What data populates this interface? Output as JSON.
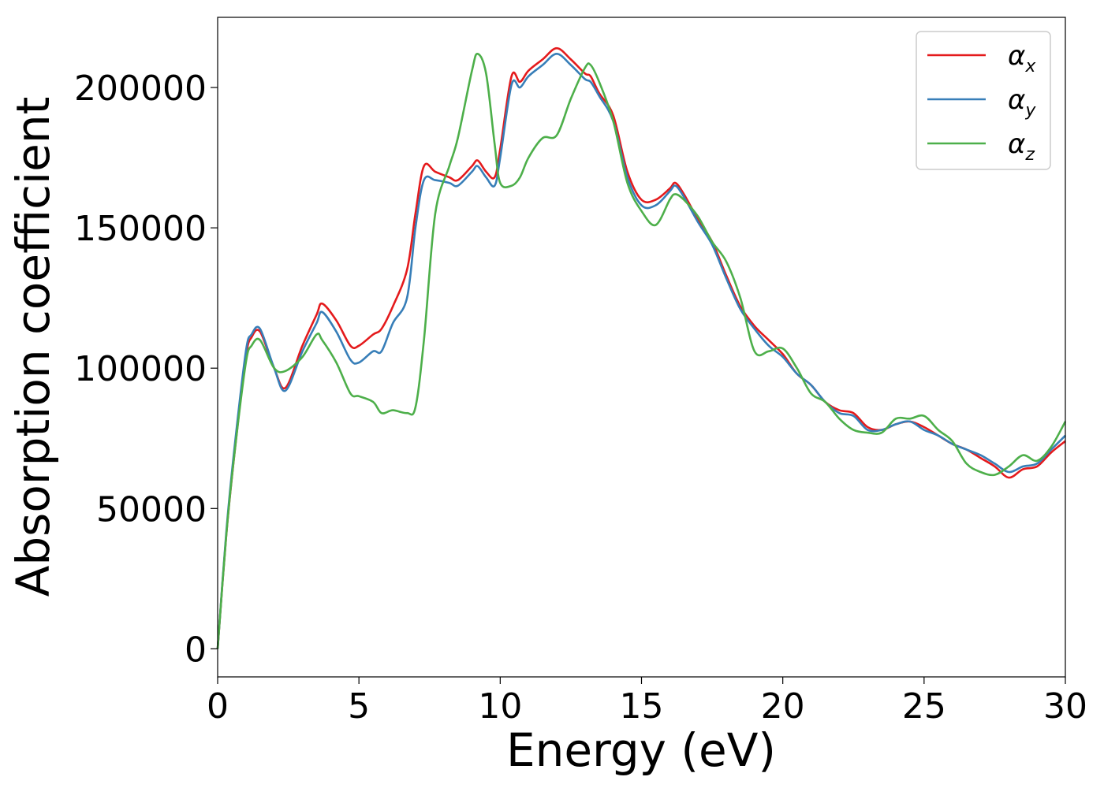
{
  "chart_data": {
    "type": "line",
    "xlabel": "Energy (eV)",
    "ylabel": "Absorption coefficient",
    "xlim": [
      0,
      30
    ],
    "ylim": [
      -10000,
      225000
    ],
    "xticks": [
      "0",
      "5",
      "10",
      "15",
      "20",
      "25",
      "30"
    ],
    "yticks": [
      "0",
      "50000",
      "100000",
      "150000",
      "200000"
    ],
    "grid": false,
    "legend_position": "top-right",
    "x": [
      0,
      0.3,
      0.6,
      1.0,
      1.2,
      1.5,
      2.0,
      2.4,
      3.0,
      3.5,
      3.7,
      4.2,
      4.7,
      5.0,
      5.5,
      5.8,
      6.2,
      6.7,
      7.0,
      7.3,
      7.7,
      8.2,
      8.5,
      9.0,
      9.2,
      9.5,
      9.8,
      10.0,
      10.4,
      10.7,
      11.0,
      11.5,
      12.0,
      12.5,
      13.0,
      13.2,
      13.5,
      14.0,
      14.5,
      15.0,
      15.5,
      16.0,
      16.2,
      16.5,
      17.0,
      17.5,
      18.0,
      18.5,
      19.0,
      19.5,
      20.0,
      20.5,
      21.0,
      21.5,
      22.0,
      22.5,
      23.0,
      23.5,
      24.0,
      24.5,
      25.0,
      25.5,
      26.0,
      26.5,
      27.0,
      27.5,
      28.0,
      28.5,
      29.0,
      29.5,
      30.0
    ],
    "series": [
      {
        "name": "α_x",
        "label_main": "α",
        "label_sub": "x",
        "color": "#e41a1c",
        "values": [
          0,
          40000,
          70000,
          104000,
          111000,
          113000,
          100000,
          93000,
          108000,
          119000,
          123000,
          117000,
          108000,
          108000,
          112000,
          114000,
          122000,
          135000,
          155000,
          172000,
          170000,
          168000,
          167000,
          172000,
          174000,
          170000,
          168000,
          178000,
          204000,
          202000,
          206000,
          210000,
          214000,
          210000,
          205000,
          204000,
          198000,
          190000,
          170000,
          160000,
          160000,
          164000,
          166000,
          162000,
          153000,
          145000,
          133000,
          122000,
          115000,
          110000,
          105000,
          98000,
          94000,
          88000,
          85000,
          84000,
          79000,
          78000,
          80000,
          81000,
          79000,
          76000,
          73000,
          71000,
          68000,
          65000,
          61000,
          64000,
          65000,
          70000,
          74000
        ]
      },
      {
        "name": "α_y",
        "label_main": "α",
        "label_sub": "y",
        "color": "#377eb8",
        "values": [
          0,
          41000,
          72000,
          106000,
          112000,
          114000,
          100000,
          92000,
          106000,
          116000,
          120000,
          113000,
          103000,
          102000,
          106000,
          106000,
          116000,
          125000,
          150000,
          167000,
          167000,
          166000,
          165000,
          170000,
          172000,
          168000,
          165000,
          175000,
          201000,
          200000,
          204000,
          208000,
          212000,
          208000,
          203000,
          202000,
          197000,
          188000,
          168000,
          158000,
          158000,
          163000,
          165000,
          161000,
          152000,
          144000,
          132000,
          121000,
          114000,
          108000,
          104000,
          98000,
          94000,
          88000,
          84000,
          83000,
          78000,
          78000,
          80000,
          81000,
          78000,
          76000,
          73000,
          71000,
          69000,
          66000,
          63000,
          65000,
          66000,
          71000,
          76000
        ]
      },
      {
        "name": "α_z",
        "label_main": "α",
        "label_sub": "z",
        "color": "#4daf4a",
        "values": [
          0,
          40000,
          70000,
          102000,
          108000,
          110000,
          100000,
          99000,
          104000,
          112000,
          110000,
          102000,
          91000,
          90000,
          88000,
          84000,
          85000,
          84000,
          86000,
          110000,
          155000,
          172000,
          182000,
          206000,
          212000,
          205000,
          180000,
          166000,
          165000,
          168000,
          175000,
          182000,
          183000,
          196000,
          207000,
          208000,
          202000,
          188000,
          166000,
          156000,
          151000,
          160000,
          162000,
          160000,
          154000,
          145000,
          138000,
          125000,
          106000,
          106000,
          107000,
          100000,
          91000,
          88000,
          82000,
          78000,
          77000,
          77000,
          82000,
          82000,
          83000,
          78000,
          74000,
          66000,
          63000,
          62000,
          65000,
          69000,
          67000,
          72000,
          81000
        ]
      }
    ]
  }
}
